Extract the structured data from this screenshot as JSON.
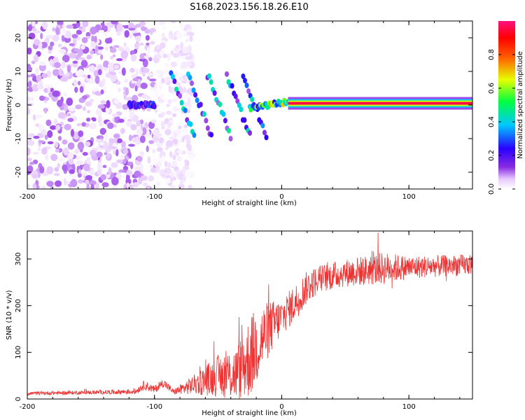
{
  "title": "S168.2023.156.18.26.E10",
  "chart_data": [
    {
      "type": "heatmap",
      "name": "spectrogram",
      "xlabel": "Height of straight line (km)",
      "ylabel": "Frequency (Hz)",
      "xlim": [
        -200,
        150
      ],
      "ylim": [
        -25,
        25
      ],
      "xticks": [
        -200,
        -100,
        0,
        100
      ],
      "yticks": [
        -20,
        -10,
        0,
        10,
        20
      ],
      "colorbar": {
        "label": "Normalized spectral amplitude",
        "range": [
          0,
          1
        ],
        "ticks": [
          0.0,
          0.2,
          0.4,
          0.6,
          0.8
        ],
        "tick_labels": [
          "0.0",
          "0.2",
          "0.4",
          "0.6",
          "0.8"
        ],
        "colors": [
          "#ffffff",
          "#e6c8ff",
          "#8a2be2",
          "#2a00ff",
          "#00c8ff",
          "#00ff40",
          "#e6ff00",
          "#ff6000",
          "#ff0000",
          "#ff1080"
        ]
      },
      "features": [
        {
          "desc": "scattered weak noise blobs",
          "x_range": [
            -200,
            -100
          ],
          "y_range": [
            -25,
            25
          ],
          "amplitude": 0.1
        },
        {
          "desc": "weak signal track",
          "x_range": [
            -120,
            -100
          ],
          "y_start": 0,
          "y_end": 0,
          "amplitude": 0.3
        },
        {
          "desc": "descending streaks",
          "x_range": [
            -90,
            -20
          ],
          "y_range": [
            -10,
            10
          ],
          "amplitude": 0.35
        },
        {
          "desc": "emerging tone",
          "x_range": [
            -25,
            5
          ],
          "y_start": -1,
          "y_end": 1,
          "amplitude": 0.55
        },
        {
          "desc": "strong steady tone",
          "x_range": [
            5,
            150
          ],
          "y": 0.5,
          "amplitude": 0.95
        }
      ]
    },
    {
      "type": "line",
      "name": "snr",
      "xlabel": "Height of straight line (km)",
      "ylabel": "SNR (10 * v/v)",
      "xlim": [
        -200,
        150
      ],
      "ylim": [
        0,
        360
      ],
      "xticks": [
        -200,
        -100,
        0,
        100
      ],
      "yticks": [
        0,
        100,
        200,
        300
      ],
      "color": "#f03232",
      "envelope": [
        {
          "x": -200,
          "base": 12,
          "noise": 4
        },
        {
          "x": -150,
          "base": 14,
          "noise": 4
        },
        {
          "x": -115,
          "base": 16,
          "noise": 6
        },
        {
          "x": -108,
          "base": 30,
          "noise": 10
        },
        {
          "x": -100,
          "base": 20,
          "noise": 8
        },
        {
          "x": -93,
          "base": 35,
          "noise": 10
        },
        {
          "x": -85,
          "base": 15,
          "noise": 6
        },
        {
          "x": -70,
          "base": 30,
          "noise": 20
        },
        {
          "x": -50,
          "base": 50,
          "noise": 45
        },
        {
          "x": -35,
          "base": 55,
          "noise": 60
        },
        {
          "x": -25,
          "base": 90,
          "noise": 90
        },
        {
          "x": -18,
          "base": 120,
          "noise": 80
        },
        {
          "x": -10,
          "base": 150,
          "noise": 60
        },
        {
          "x": 0,
          "base": 175,
          "noise": 40
        },
        {
          "x": 10,
          "base": 205,
          "noise": 40
        },
        {
          "x": 20,
          "base": 240,
          "noise": 35
        },
        {
          "x": 30,
          "base": 258,
          "noise": 30
        },
        {
          "x": 50,
          "base": 270,
          "noise": 30
        },
        {
          "x": 80,
          "base": 280,
          "noise": 35
        },
        {
          "x": 100,
          "base": 282,
          "noise": 25
        },
        {
          "x": 150,
          "base": 288,
          "noise": 22
        }
      ]
    }
  ]
}
